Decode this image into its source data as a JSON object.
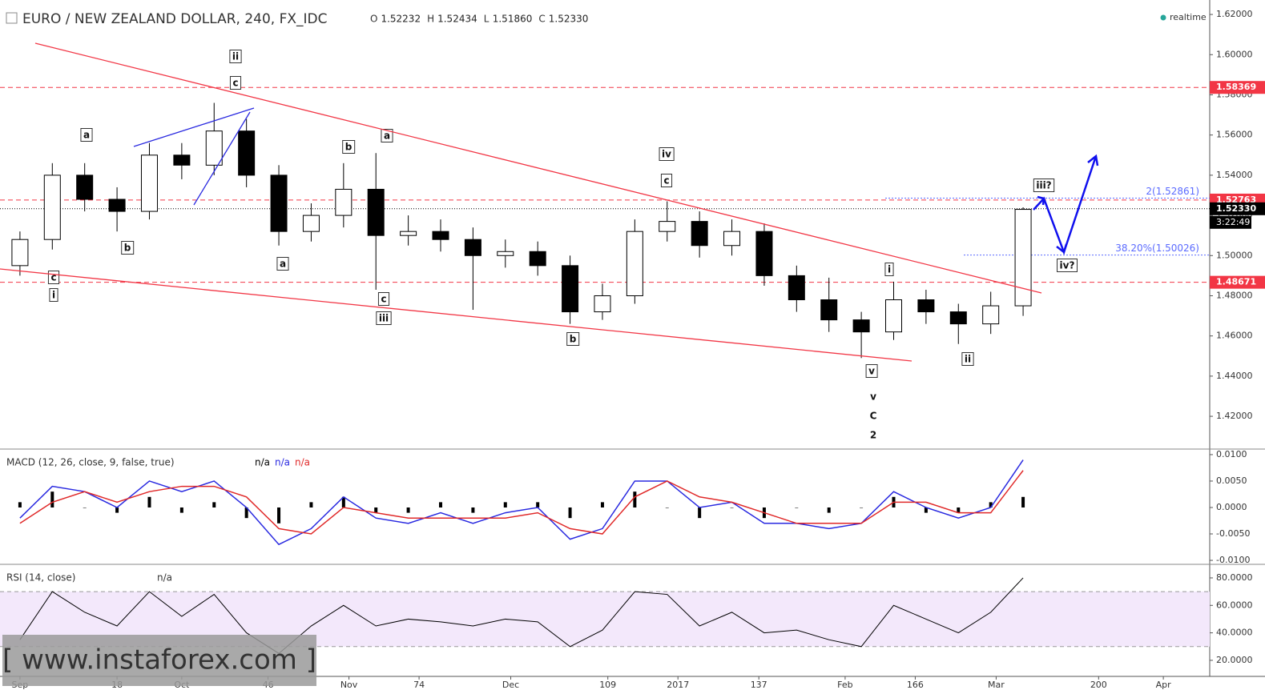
{
  "chart_data": [
    {
      "type": "candlestick",
      "title": "EURO / NEW ZEALAND DOLLAR, 240, FX_IDC",
      "ohlc_header": [
        {
          "name": "O",
          "value": 1.52232
        },
        {
          "name": "H",
          "value": 1.52434
        },
        {
          "name": "L",
          "value": {
            "value": 1.5186,
            "label": "1.51860"
          }
        },
        {
          "name": "C",
          "value": {
            "value": 1.5233,
            "label": "1.52330"
          }
        }
      ],
      "status": "realtime",
      "x": [
        0,
        6,
        12,
        18,
        24,
        30,
        36,
        42,
        48,
        54,
        60,
        66,
        72,
        78,
        84,
        90,
        96,
        102,
        108,
        114,
        120,
        126,
        132,
        138,
        144,
        150,
        156,
        162,
        168,
        174,
        180,
        186
      ],
      "open": [
        1.495,
        1.508,
        1.54,
        1.528,
        1.522,
        1.55,
        1.545,
        1.562,
        1.54,
        1.512,
        1.52,
        1.533,
        1.51,
        1.512,
        1.508,
        1.5,
        1.502,
        1.495,
        1.472,
        1.48,
        1.512,
        1.517,
        1.505,
        1.512,
        1.49,
        1.478,
        1.468,
        1.462,
        1.478,
        1.472,
        1.466,
        1.475
      ],
      "high": [
        1.512,
        1.546,
        1.546,
        1.534,
        1.556,
        1.556,
        1.576,
        1.568,
        1.545,
        1.526,
        1.546,
        1.551,
        1.52,
        1.518,
        1.514,
        1.508,
        1.507,
        1.5,
        1.486,
        1.518,
        1.527,
        1.522,
        1.518,
        1.516,
        1.495,
        1.489,
        1.472,
        1.487,
        1.483,
        1.476,
        1.482,
        1.524
      ],
      "low": [
        1.49,
        1.503,
        1.522,
        1.512,
        1.518,
        1.538,
        1.54,
        1.534,
        1.505,
        1.507,
        1.514,
        1.483,
        1.505,
        1.502,
        1.473,
        1.494,
        1.49,
        1.466,
        1.468,
        1.476,
        1.507,
        1.499,
        1.5,
        1.485,
        1.472,
        1.462,
        1.449,
        1.458,
        1.466,
        1.456,
        1.461,
        1.47
      ],
      "close": [
        1.508,
        1.54,
        1.528,
        1.522,
        1.55,
        1.545,
        1.562,
        1.54,
        1.512,
        1.52,
        1.533,
        1.51,
        1.512,
        1.508,
        1.5,
        1.502,
        1.495,
        1.472,
        1.48,
        1.512,
        1.517,
        1.505,
        1.512,
        1.49,
        1.478,
        1.468,
        1.462,
        1.478,
        1.472,
        1.466,
        1.475,
        1.523
      ],
      "xlim": [
        -3.7,
        220.6
      ],
      "ylim": [
        1.4041,
        1.6272
      ],
      "yticks": [
        {
          "value": 1.62,
          "label": "1.62000"
        },
        {
          "value": 1.6,
          "label": "1.60000"
        },
        {
          "value": 1.58,
          "label": "1.58000"
        },
        {
          "value": 1.56,
          "label": "1.56000"
        },
        {
          "value": 1.54,
          "label": "1.54000"
        },
        {
          "value": 1.52,
          "label": "1.52000"
        },
        {
          "value": 1.5,
          "label": "1.50000"
        },
        {
          "value": 1.48,
          "label": "1.48000"
        },
        {
          "value": 1.46,
          "label": "1.46000"
        },
        {
          "value": 1.44,
          "label": "1.44000"
        },
        {
          "value": 1.42,
          "label": "1.42000"
        }
      ],
      "levels": [
        1.58369,
        1.52763,
        1.48671
      ],
      "level_color": "#f23645",
      "last_price": {
        "value": 1.5233,
        "label": "1.52330"
      },
      "countdown": "3:22:49",
      "fib_levels": [
        {
          "value": 1.52861,
          "label": "2(1.52861)"
        },
        {
          "value": 1.50026,
          "label": "38.20%(1.50026)"
        }
      ],
      "annotations": [
        "ii",
        "c",
        "a",
        "b",
        "c",
        "i",
        "b",
        "a",
        "a",
        "c",
        "iii",
        "iv",
        "c",
        "b",
        "i",
        "v",
        "ii",
        "iii?",
        "iv?",
        "v",
        "C",
        "2"
      ],
      "watermark": "[ www.instaforex.com ]"
    },
    {
      "type": "macd",
      "title": "MACD (12, 26, close, 9, false, true)",
      "readings": [
        {
          "label": "n/a",
          "color": "#000000"
        },
        {
          "label": "n/a",
          "color": "#2a2ae0"
        },
        {
          "label": "n/a",
          "color": "#e02a2a"
        }
      ],
      "x": [
        0,
        6,
        12,
        18,
        24,
        30,
        36,
        42,
        48,
        54,
        60,
        66,
        72,
        78,
        84,
        90,
        96,
        102,
        108,
        114,
        120,
        126,
        132,
        138,
        144,
        150,
        156,
        162,
        168,
        174,
        180,
        186
      ],
      "histogram": {
        "color": "#000000",
        "values": [
          0.001,
          0.003,
          0,
          -0.001,
          0.002,
          -0.001,
          0.001,
          -0.002,
          -0.003,
          0.001,
          0.002,
          -0.001,
          -0.001,
          0.001,
          -0.001,
          0.001,
          0.001,
          -0.002,
          0.001,
          0.003,
          0,
          -0.002,
          0,
          -0.002,
          0,
          -0.001,
          0,
          0.002,
          -0.001,
          -0.001,
          0.001,
          0.002
        ]
      },
      "series": [
        {
          "color": "#2a2ae0",
          "values": [
            -0.002,
            0.004,
            0.003,
            0,
            0.005,
            0.003,
            0.005,
            0,
            -0.007,
            -0.004,
            0.002,
            -0.002,
            -0.003,
            -0.001,
            -0.003,
            -0.001,
            0,
            -0.006,
            -0.004,
            0.005,
            0.005,
            0,
            0.001,
            -0.003,
            -0.003,
            -0.004,
            -0.003,
            0.003,
            0,
            -0.002,
            0,
            0.009
          ]
        },
        {
          "color": "#e02a2a",
          "values": [
            -0.003,
            0.001,
            0.003,
            0.001,
            0.003,
            0.004,
            0.004,
            0.002,
            -0.004,
            -0.005,
            0,
            -0.001,
            -0.002,
            -0.002,
            -0.002,
            -0.002,
            -0.001,
            -0.004,
            -0.005,
            0.002,
            0.005,
            0.002,
            0.001,
            -0.001,
            -0.003,
            -0.003,
            -0.003,
            0.001,
            0.001,
            -0.001,
            -0.001,
            0.007
          ]
        }
      ],
      "xlim": [
        -3.7,
        220.6
      ],
      "ylim": [
        -0.0106,
        0.0109
      ],
      "yticks": [
        {
          "value": 0.01,
          "label": "0.0100"
        },
        {
          "value": 0.005,
          "label": "0.0050"
        },
        {
          "value": 0,
          "label": "0.0000"
        },
        {
          "value": -0.005,
          "label": "-0.0050"
        },
        {
          "value": -0.01,
          "label": "-0.0100"
        }
      ]
    },
    {
      "type": "line",
      "title": "RSI (14, close)",
      "reading": "n/a",
      "x": [
        0,
        6,
        12,
        18,
        24,
        30,
        36,
        42,
        48,
        54,
        60,
        66,
        72,
        78,
        84,
        90,
        96,
        102,
        108,
        114,
        120,
        126,
        132,
        138,
        144,
        150,
        156,
        162,
        168,
        174,
        180,
        186
      ],
      "series": [
        {
          "color": "#000000",
          "values": [
            35,
            70,
            55,
            45,
            70,
            52,
            68,
            40,
            25,
            45,
            60,
            45,
            50,
            48,
            45,
            50,
            48,
            30,
            42,
            70,
            68,
            45,
            55,
            40,
            42,
            35,
            30,
            60,
            50,
            40,
            55,
            80
          ]
        }
      ],
      "band": [
        30,
        70
      ],
      "xlim": [
        -3.7,
        220.6
      ],
      "ylim": [
        8.3,
        89.3
      ],
      "yticks": [
        {
          "value": 80,
          "label": "80.0000"
        },
        {
          "value": 60,
          "label": "60.0000"
        },
        {
          "value": 40,
          "label": "40.0000"
        },
        {
          "value": 20,
          "label": "20.0000"
        }
      ],
      "xticks": [
        {
          "value": 0,
          "label": "Sep"
        },
        18,
        {
          "value": 30,
          "label": "Oct"
        },
        46,
        {
          "value": 61,
          "label": "Nov"
        },
        74,
        {
          "value": 91,
          "label": "Dec"
        },
        109,
        {
          "value": 122,
          "label": "2017"
        },
        137,
        {
          "value": 153,
          "label": "Feb"
        },
        166,
        {
          "value": 181,
          "label": "Mar"
        },
        200,
        {
          "value": 212,
          "label": "Apr"
        }
      ]
    }
  ]
}
